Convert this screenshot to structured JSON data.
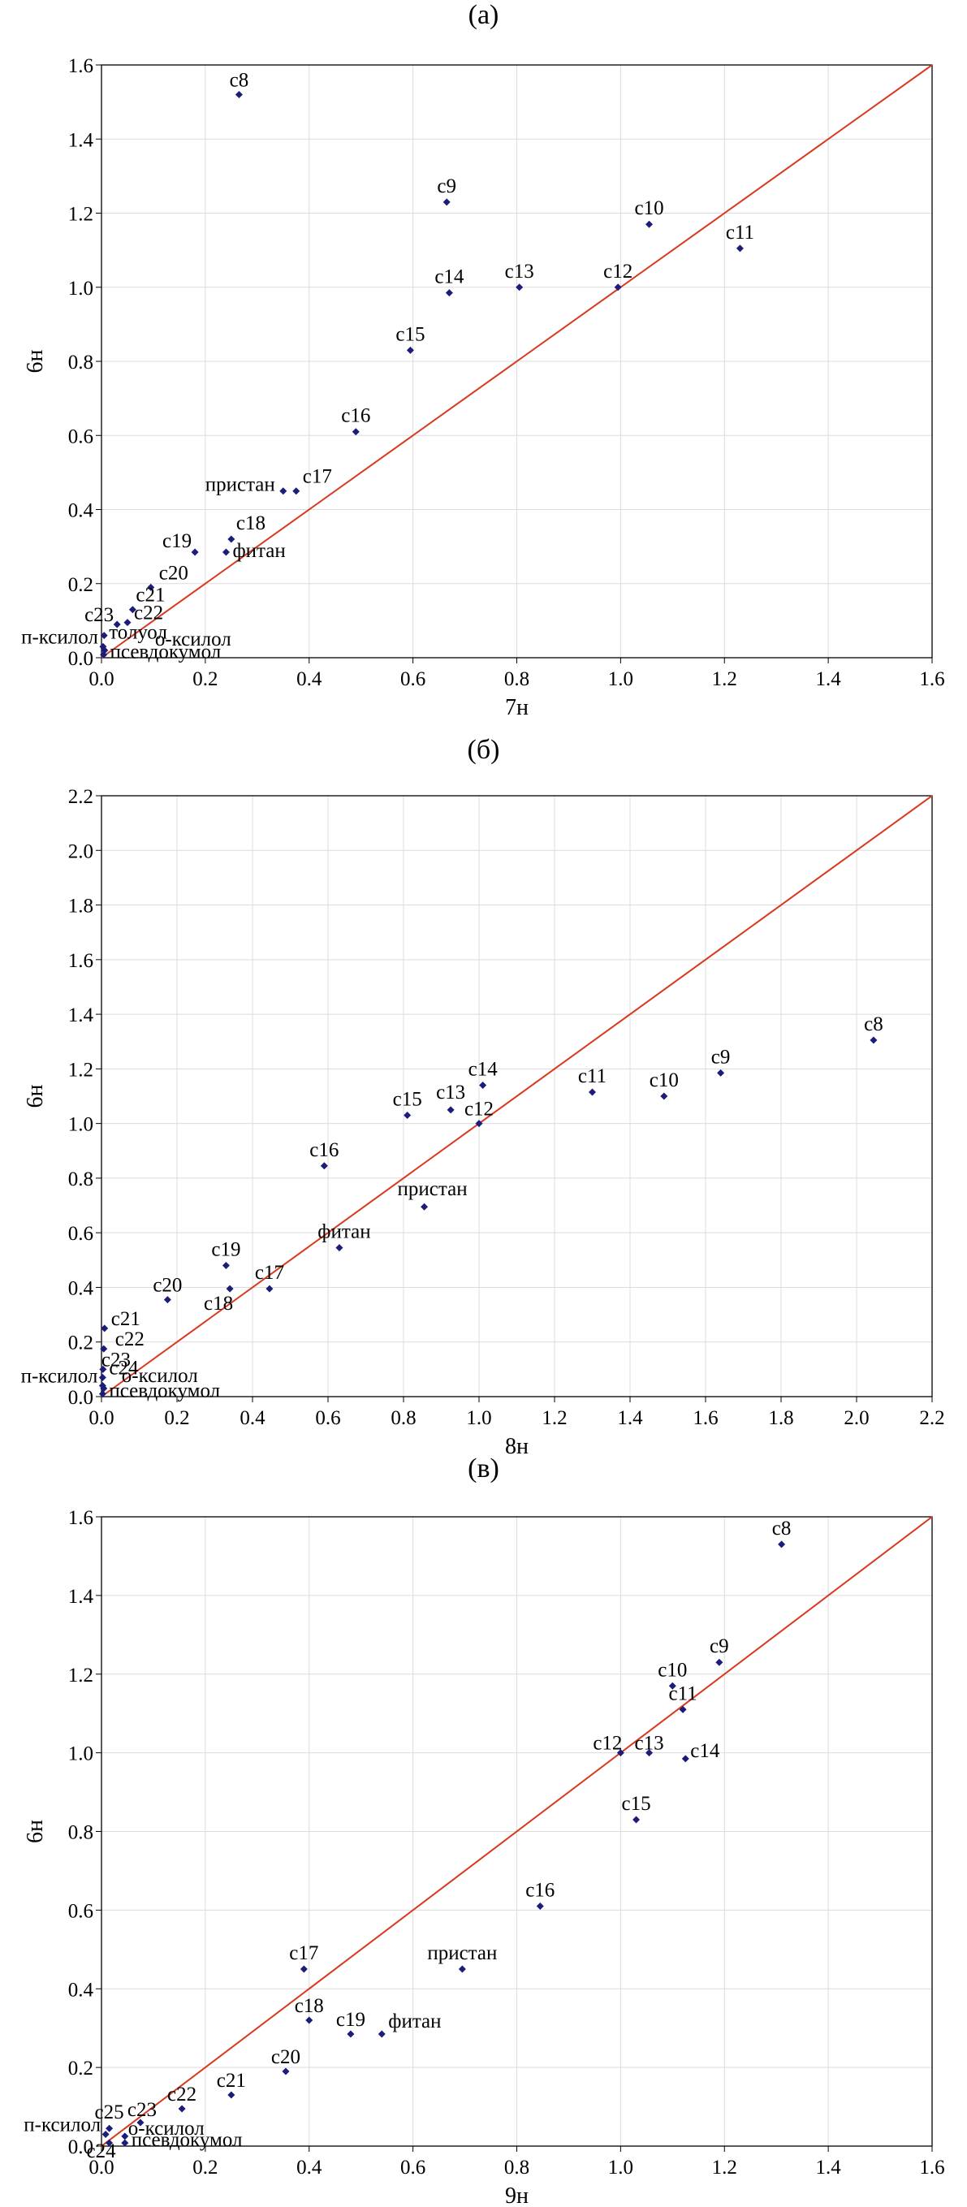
{
  "chart_data": [
    {
      "type": "scatter",
      "panel_label": "(а)",
      "xlabel": "7н",
      "ylabel": "6н",
      "xlim": [
        0,
        1.6
      ],
      "ylim": [
        0,
        1.6
      ],
      "xticks": [
        "0.0",
        "0.2",
        "0.4",
        "0.6",
        "0.8",
        "1.0",
        "1.2",
        "1.4",
        "1.6"
      ],
      "yticks": [
        "0.0",
        "0.2",
        "0.4",
        "0.6",
        "0.8",
        "1.0",
        "1.2",
        "1.4",
        "1.6"
      ],
      "grid": true,
      "reference_line": {
        "x": [
          0,
          1.6
        ],
        "y": [
          0,
          1.6
        ],
        "color": "#d9381e"
      },
      "point_color": "#1c1c7a",
      "points": [
        {
          "label": "c8",
          "x": 0.265,
          "y": 1.52
        },
        {
          "label": "c9",
          "x": 0.665,
          "y": 1.23
        },
        {
          "label": "c10",
          "x": 1.055,
          "y": 1.17
        },
        {
          "label": "c11",
          "x": 1.23,
          "y": 1.105
        },
        {
          "label": "c12",
          "x": 0.995,
          "y": 1.0
        },
        {
          "label": "c13",
          "x": 0.805,
          "y": 1.0
        },
        {
          "label": "c14",
          "x": 0.67,
          "y": 0.985
        },
        {
          "label": "c15",
          "x": 0.595,
          "y": 0.83
        },
        {
          "label": "c16",
          "x": 0.49,
          "y": 0.61
        },
        {
          "label": "c17",
          "x": 0.375,
          "y": 0.45
        },
        {
          "label": "пристан",
          "x": 0.35,
          "y": 0.45
        },
        {
          "label": "c18",
          "x": 0.25,
          "y": 0.32
        },
        {
          "label": "фитан",
          "x": 0.24,
          "y": 0.285
        },
        {
          "label": "c19",
          "x": 0.18,
          "y": 0.285
        },
        {
          "label": "c20",
          "x": 0.095,
          "y": 0.19
        },
        {
          "label": "c21",
          "x": 0.06,
          "y": 0.13
        },
        {
          "label": "c22",
          "x": 0.05,
          "y": 0.095
        },
        {
          "label": "c23",
          "x": 0.03,
          "y": 0.09
        },
        {
          "label": "толуол",
          "x": 0.005,
          "y": 0.06
        },
        {
          "label": "п-ксилол",
          "x": 0.003,
          "y": 0.03
        },
        {
          "label": "о-ксилол",
          "x": 0.006,
          "y": 0.02
        },
        {
          "label": "псевдокумол",
          "x": 0.004,
          "y": 0.008
        }
      ]
    },
    {
      "type": "scatter",
      "panel_label": "(б)",
      "xlabel": "8н",
      "ylabel": "6н",
      "xlim": [
        0,
        2.2
      ],
      "ylim": [
        0,
        2.2
      ],
      "xticks": [
        "0.0",
        "0.2",
        "0.4",
        "0.6",
        "0.8",
        "1.0",
        "1.2",
        "1.4",
        "1.6",
        "1.8",
        "2.0",
        "2.2"
      ],
      "yticks": [
        "0.0",
        "0.2",
        "0.4",
        "0.6",
        "0.8",
        "1.0",
        "1.2",
        "1.4",
        "1.6",
        "1.8",
        "2.0",
        "2.2"
      ],
      "grid": true,
      "reference_line": {
        "x": [
          0,
          2.2
        ],
        "y": [
          0,
          2.2
        ],
        "color": "#d9381e"
      },
      "point_color": "#1c1c7a",
      "points": [
        {
          "label": "c8",
          "x": 2.045,
          "y": 1.305
        },
        {
          "label": "c9",
          "x": 1.64,
          "y": 1.185
        },
        {
          "label": "c10",
          "x": 1.49,
          "y": 1.1
        },
        {
          "label": "c11",
          "x": 1.3,
          "y": 1.115
        },
        {
          "label": "c12",
          "x": 1.0,
          "y": 1.0
        },
        {
          "label": "c13",
          "x": 0.925,
          "y": 1.05
        },
        {
          "label": "c14",
          "x": 1.01,
          "y": 1.14
        },
        {
          "label": "c15",
          "x": 0.81,
          "y": 1.03
        },
        {
          "label": "c16",
          "x": 0.59,
          "y": 0.845
        },
        {
          "label": "пристан",
          "x": 0.855,
          "y": 0.695
        },
        {
          "label": "фитан",
          "x": 0.63,
          "y": 0.545
        },
        {
          "label": "c17",
          "x": 0.445,
          "y": 0.395
        },
        {
          "label": "c18",
          "x": 0.34,
          "y": 0.395
        },
        {
          "label": "c19",
          "x": 0.33,
          "y": 0.48
        },
        {
          "label": "c20",
          "x": 0.175,
          "y": 0.355
        },
        {
          "label": "c21",
          "x": 0.008,
          "y": 0.25
        },
        {
          "label": "c22",
          "x": 0.006,
          "y": 0.175
        },
        {
          "label": "c23",
          "x": 0.004,
          "y": 0.1
        },
        {
          "label": "c24",
          "x": 0.003,
          "y": 0.07
        },
        {
          "label": "п-ксилол",
          "x": 0.003,
          "y": 0.04
        },
        {
          "label": "о-ксилол",
          "x": 0.006,
          "y": 0.03
        },
        {
          "label": "псевдокумол",
          "x": 0.003,
          "y": 0.01
        }
      ]
    },
    {
      "type": "scatter",
      "panel_label": "(в)",
      "xlabel": "9н",
      "ylabel": "6н",
      "xlim": [
        0,
        1.6
      ],
      "ylim": [
        0,
        1.6
      ],
      "xticks": [
        "0.0",
        "0.2",
        "0.4",
        "0.6",
        "0.8",
        "1.0",
        "1.2",
        "1.4",
        "1.6"
      ],
      "yticks": [
        "0.0",
        "0.2",
        "0.4",
        "0.6",
        "0.8",
        "1.0",
        "1.2",
        "1.4",
        "1.6"
      ],
      "grid": true,
      "reference_line": {
        "x": [
          0,
          1.6
        ],
        "y": [
          0,
          1.6
        ],
        "color": "#d9381e"
      },
      "point_color": "#1c1c7a",
      "points": [
        {
          "label": "c8",
          "x": 1.31,
          "y": 1.53
        },
        {
          "label": "c9",
          "x": 1.19,
          "y": 1.23
        },
        {
          "label": "c10",
          "x": 1.1,
          "y": 1.17
        },
        {
          "label": "c11",
          "x": 1.12,
          "y": 1.11
        },
        {
          "label": "c12",
          "x": 1.0,
          "y": 1.0
        },
        {
          "label": "c13",
          "x": 1.055,
          "y": 1.0
        },
        {
          "label": "c14",
          "x": 1.125,
          "y": 0.985
        },
        {
          "label": "c15",
          "x": 1.03,
          "y": 0.83
        },
        {
          "label": "c16",
          "x": 0.845,
          "y": 0.61
        },
        {
          "label": "пристан",
          "x": 0.695,
          "y": 0.45
        },
        {
          "label": "c17",
          "x": 0.39,
          "y": 0.45
        },
        {
          "label": "c18",
          "x": 0.4,
          "y": 0.32
        },
        {
          "label": "c19",
          "x": 0.48,
          "y": 0.285
        },
        {
          "label": "фитан",
          "x": 0.54,
          "y": 0.285
        },
        {
          "label": "c20",
          "x": 0.355,
          "y": 0.19
        },
        {
          "label": "c21",
          "x": 0.25,
          "y": 0.13
        },
        {
          "label": "c22",
          "x": 0.155,
          "y": 0.095
        },
        {
          "label": "c23",
          "x": 0.075,
          "y": 0.06
        },
        {
          "label": "c25",
          "x": 0.015,
          "y": 0.045
        },
        {
          "label": "п-ксилол",
          "x": 0.008,
          "y": 0.03
        },
        {
          "label": "о-ксилол",
          "x": 0.045,
          "y": 0.025
        },
        {
          "label": "псевдокумол",
          "x": 0.045,
          "y": 0.008
        },
        {
          "label": "c24",
          "x": 0.015,
          "y": 0.008
        }
      ]
    }
  ]
}
